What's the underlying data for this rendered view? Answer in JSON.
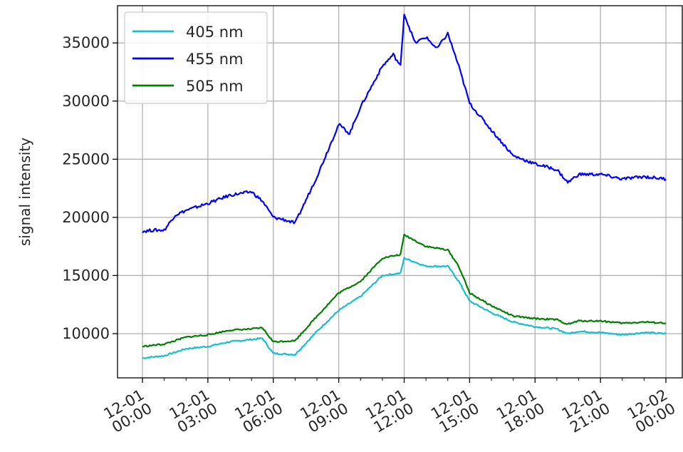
{
  "chart_data": {
    "type": "line",
    "title": "",
    "xlabel": "",
    "ylabel": "signal intensity",
    "x_tick_labels": [
      [
        "12-01",
        "00:00"
      ],
      [
        "12-01",
        "03:00"
      ],
      [
        "12-01",
        "06:00"
      ],
      [
        "12-01",
        "09:00"
      ],
      [
        "12-01",
        "12:00"
      ],
      [
        "12-01",
        "15:00"
      ],
      [
        "12-01",
        "18:00"
      ],
      [
        "12-01",
        "21:00"
      ],
      [
        "12-02",
        "00:00"
      ]
    ],
    "y_ticks": [
      "10000",
      "15000",
      "20000",
      "25000",
      "30000",
      "35000"
    ],
    "xlim": [
      "12-01 00:00",
      "12-02 00:00"
    ],
    "ylim": [
      6200,
      38200
    ],
    "grid": true,
    "legend_position": "top-left",
    "series": [
      {
        "name": "405 nm",
        "color": "#17becf",
        "points": [
          [
            "12-01 00:00",
            7900
          ],
          [
            "12-01 01:00",
            8100
          ],
          [
            "12-01 02:00",
            8700
          ],
          [
            "12-01 03:00",
            8900
          ],
          [
            "12-01 04:00",
            9300
          ],
          [
            "12-01 05:00",
            9500
          ],
          [
            "12-01 05:30",
            9600
          ],
          [
            "12-01 06:00",
            8300
          ],
          [
            "12-01 07:00",
            8200
          ],
          [
            "12-01 08:00",
            10200
          ],
          [
            "12-01 09:00",
            12000
          ],
          [
            "12-01 10:00",
            13200
          ],
          [
            "12-01 11:00",
            15000
          ],
          [
            "12-01 11:50",
            15200
          ],
          [
            "12-01 12:00",
            16500
          ],
          [
            "12-01 13:00",
            15800
          ],
          [
            "12-01 14:00",
            15800
          ],
          [
            "12-01 14:30",
            14500
          ],
          [
            "12-01 15:00",
            12800
          ],
          [
            "12-01 16:00",
            11800
          ],
          [
            "12-01 17:00",
            11000
          ],
          [
            "12-01 18:00",
            10600
          ],
          [
            "12-01 19:00",
            10400
          ],
          [
            "12-01 19:30",
            10000
          ],
          [
            "12-01 20:00",
            10200
          ],
          [
            "12-01 21:00",
            10100
          ],
          [
            "12-01 22:00",
            9900
          ],
          [
            "12-01 23:00",
            10100
          ],
          [
            "12-02 00:00",
            10000
          ]
        ]
      },
      {
        "name": "455 nm",
        "color": "#0000ff",
        "points": [
          [
            "12-01 00:00",
            18800
          ],
          [
            "12-01 00:30",
            18900
          ],
          [
            "12-01 01:00",
            18900
          ],
          [
            "12-01 01:30",
            20200
          ],
          [
            "12-01 02:00",
            20600
          ],
          [
            "12-01 03:00",
            21200
          ],
          [
            "12-01 04:00",
            21900
          ],
          [
            "12-01 05:00",
            22200
          ],
          [
            "12-01 05:30",
            21400
          ],
          [
            "12-01 06:00",
            20000
          ],
          [
            "12-01 06:30",
            19800
          ],
          [
            "12-01 07:00",
            19500
          ],
          [
            "12-01 08:00",
            23500
          ],
          [
            "12-01 09:00",
            28000
          ],
          [
            "12-01 09:30",
            27200
          ],
          [
            "12-01 10:00",
            29500
          ],
          [
            "12-01 11:00",
            33000
          ],
          [
            "12-01 11:30",
            34000
          ],
          [
            "12-01 11:50",
            33000
          ],
          [
            "12-01 12:00",
            37500
          ],
          [
            "12-01 12:30",
            35000
          ],
          [
            "12-01 13:00",
            35500
          ],
          [
            "12-01 13:30",
            34500
          ],
          [
            "12-01 14:00",
            35800
          ],
          [
            "12-01 14:30",
            33000
          ],
          [
            "12-01 15:00",
            29800
          ],
          [
            "12-01 16:00",
            27500
          ],
          [
            "12-01 17:00",
            25300
          ],
          [
            "12-01 18:00",
            24600
          ],
          [
            "12-01 19:00",
            24100
          ],
          [
            "12-01 19:30",
            23000
          ],
          [
            "12-01 20:00",
            23700
          ],
          [
            "12-01 21:00",
            23700
          ],
          [
            "12-01 22:00",
            23300
          ],
          [
            "12-01 23:00",
            23500
          ],
          [
            "12-02 00:00",
            23300
          ]
        ]
      },
      {
        "name": "505 nm",
        "color": "#008000",
        "points": [
          [
            "12-01 00:00",
            8900
          ],
          [
            "12-01 01:00",
            9100
          ],
          [
            "12-01 02:00",
            9700
          ],
          [
            "12-01 03:00",
            9900
          ],
          [
            "12-01 04:00",
            10300
          ],
          [
            "12-01 05:00",
            10400
          ],
          [
            "12-01 05:30",
            10500
          ],
          [
            "12-01 06:00",
            9300
          ],
          [
            "12-01 07:00",
            9400
          ],
          [
            "12-01 08:00",
            11500
          ],
          [
            "12-01 09:00",
            13500
          ],
          [
            "12-01 10:00",
            14500
          ],
          [
            "12-01 11:00",
            16500
          ],
          [
            "12-01 11:50",
            16800
          ],
          [
            "12-01 12:00",
            18500
          ],
          [
            "12-01 13:00",
            17500
          ],
          [
            "12-01 14:00",
            17200
          ],
          [
            "12-01 14:30",
            15800
          ],
          [
            "12-01 15:00",
            13500
          ],
          [
            "12-01 16:00",
            12400
          ],
          [
            "12-01 17:00",
            11500
          ],
          [
            "12-01 18:00",
            11300
          ],
          [
            "12-01 19:00",
            11200
          ],
          [
            "12-01 19:30",
            10800
          ],
          [
            "12-01 20:00",
            11100
          ],
          [
            "12-01 21:00",
            11100
          ],
          [
            "12-01 22:00",
            10900
          ],
          [
            "12-01 23:00",
            11000
          ],
          [
            "12-02 00:00",
            10900
          ]
        ]
      }
    ]
  }
}
